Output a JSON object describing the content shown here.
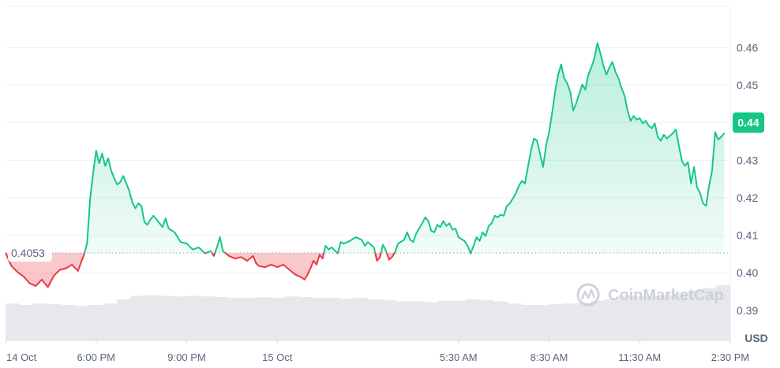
{
  "watermark": {
    "text": "CoinMarketCap"
  },
  "chart_data": {
    "type": "line",
    "unit_label": "USD",
    "reference_value": 0.4053,
    "reference_label": "0.4053",
    "current_value": 0.44,
    "current_label": "0.44",
    "ylim": [
      0.382,
      0.471
    ],
    "y_ticks": [
      "0.46",
      "0.45",
      "0.44",
      "0.43",
      "0.42",
      "0.41",
      "0.40",
      "0.39"
    ],
    "y_tick_values": [
      0.46,
      0.45,
      0.44,
      0.43,
      0.42,
      0.41,
      0.4,
      0.39
    ],
    "x_ticks": [
      "14 Oct",
      "6:00 PM",
      "9:00 PM",
      "15 Oct",
      "5:30 AM",
      "8:30 AM",
      "11:30 AM",
      "2:30 PM"
    ],
    "x_tick_index": [
      0,
      30,
      60,
      90,
      150,
      180,
      210,
      240
    ],
    "x_count": 240,
    "series": [
      {
        "values": [
          [
            0,
            0.4053
          ],
          [
            2,
            0.4018
          ],
          [
            4,
            0.4002
          ],
          [
            6,
            0.399
          ],
          [
            8,
            0.3972
          ],
          [
            10,
            0.3965
          ],
          [
            12,
            0.3982
          ],
          [
            14,
            0.3962
          ],
          [
            16,
            0.3992
          ],
          [
            18,
            0.4008
          ],
          [
            20,
            0.4012
          ],
          [
            22,
            0.4022
          ],
          [
            24,
            0.4005
          ],
          [
            25,
            0.4028
          ],
          [
            26,
            0.4048
          ],
          [
            27,
            0.4078
          ],
          [
            28,
            0.4195
          ],
          [
            29,
            0.4265
          ],
          [
            30,
            0.4325
          ],
          [
            31,
            0.4292
          ],
          [
            32,
            0.4318
          ],
          [
            33,
            0.4285
          ],
          [
            34,
            0.4305
          ],
          [
            35,
            0.4272
          ],
          [
            36,
            0.4252
          ],
          [
            37,
            0.4235
          ],
          [
            38,
            0.4242
          ],
          [
            39,
            0.4258
          ],
          [
            40,
            0.4238
          ],
          [
            41,
            0.4218
          ],
          [
            42,
            0.4188
          ],
          [
            43,
            0.4172
          ],
          [
            44,
            0.4185
          ],
          [
            45,
            0.4178
          ],
          [
            46,
            0.4135
          ],
          [
            47,
            0.4128
          ],
          [
            48,
            0.4142
          ],
          [
            49,
            0.4152
          ],
          [
            50,
            0.4142
          ],
          [
            52,
            0.4122
          ],
          [
            53,
            0.4145
          ],
          [
            54,
            0.4118
          ],
          [
            56,
            0.4108
          ],
          [
            58,
            0.4082
          ],
          [
            60,
            0.4078
          ],
          [
            62,
            0.4062
          ],
          [
            64,
            0.4068
          ],
          [
            66,
            0.4052
          ],
          [
            68,
            0.4058
          ],
          [
            69,
            0.4045
          ],
          [
            70,
            0.4068
          ],
          [
            71,
            0.4095
          ],
          [
            72,
            0.4058
          ],
          [
            74,
            0.4045
          ],
          [
            76,
            0.4038
          ],
          [
            78,
            0.4042
          ],
          [
            80,
            0.4032
          ],
          [
            82,
            0.4045
          ],
          [
            83,
            0.4025
          ],
          [
            84,
            0.4018
          ],
          [
            86,
            0.4015
          ],
          [
            88,
            0.4022
          ],
          [
            90,
            0.4015
          ],
          [
            92,
            0.4022
          ],
          [
            94,
            0.4008
          ],
          [
            96,
            0.3995
          ],
          [
            98,
            0.3988
          ],
          [
            99,
            0.3982
          ],
          [
            100,
            0.3995
          ],
          [
            101,
            0.4012
          ],
          [
            102,
            0.4032
          ],
          [
            103,
            0.4022
          ],
          [
            104,
            0.4048
          ],
          [
            105,
            0.4038
          ],
          [
            106,
            0.4072
          ],
          [
            107,
            0.4062
          ],
          [
            108,
            0.4068
          ],
          [
            110,
            0.4052
          ],
          [
            111,
            0.4082
          ],
          [
            112,
            0.4078
          ],
          [
            114,
            0.4085
          ],
          [
            116,
            0.4095
          ],
          [
            118,
            0.4088
          ],
          [
            119,
            0.4072
          ],
          [
            120,
            0.4082
          ],
          [
            122,
            0.4068
          ],
          [
            123,
            0.4032
          ],
          [
            124,
            0.4042
          ],
          [
            125,
            0.4075
          ],
          [
            126,
            0.4058
          ],
          [
            127,
            0.4035
          ],
          [
            128,
            0.4042
          ],
          [
            129,
            0.4055
          ],
          [
            130,
            0.4078
          ],
          [
            132,
            0.4088
          ],
          [
            133,
            0.4108
          ],
          [
            134,
            0.4088
          ],
          [
            135,
            0.4082
          ],
          [
            136,
            0.4105
          ],
          [
            138,
            0.4132
          ],
          [
            139,
            0.4148
          ],
          [
            140,
            0.4138
          ],
          [
            141,
            0.4112
          ],
          [
            142,
            0.4108
          ],
          [
            143,
            0.4128
          ],
          [
            144,
            0.4122
          ],
          [
            145,
            0.4138
          ],
          [
            146,
            0.4125
          ],
          [
            147,
            0.4132
          ],
          [
            148,
            0.4115
          ],
          [
            149,
            0.4118
          ],
          [
            150,
            0.4095
          ],
          [
            152,
            0.4085
          ],
          [
            153,
            0.4072
          ],
          [
            154,
            0.4052
          ],
          [
            155,
            0.4072
          ],
          [
            156,
            0.4095
          ],
          [
            157,
            0.4085
          ],
          [
            158,
            0.4108
          ],
          [
            159,
            0.4098
          ],
          [
            160,
            0.4125
          ],
          [
            161,
            0.4132
          ],
          [
            162,
            0.4152
          ],
          [
            163,
            0.4148
          ],
          [
            164,
            0.4155
          ],
          [
            165,
            0.4152
          ],
          [
            166,
            0.4178
          ],
          [
            167,
            0.4185
          ],
          [
            168,
            0.4198
          ],
          [
            169,
            0.4212
          ],
          [
            170,
            0.4232
          ],
          [
            171,
            0.4245
          ],
          [
            172,
            0.4238
          ],
          [
            173,
            0.4282
          ],
          [
            174,
            0.4325
          ],
          [
            175,
            0.4358
          ],
          [
            176,
            0.4352
          ],
          [
            177,
            0.4318
          ],
          [
            178,
            0.4282
          ],
          [
            179,
            0.4338
          ],
          [
            180,
            0.4375
          ],
          [
            181,
            0.4425
          ],
          [
            182,
            0.4482
          ],
          [
            183,
            0.4528
          ],
          [
            184,
            0.4555
          ],
          [
            185,
            0.4518
          ],
          [
            186,
            0.4505
          ],
          [
            187,
            0.4482
          ],
          [
            188,
            0.4432
          ],
          [
            189,
            0.4452
          ],
          [
            190,
            0.4478
          ],
          [
            191,
            0.4502
          ],
          [
            192,
            0.4488
          ],
          [
            193,
            0.4528
          ],
          [
            194,
            0.4548
          ],
          [
            195,
            0.4572
          ],
          [
            196,
            0.4612
          ],
          [
            197,
            0.4585
          ],
          [
            198,
            0.4552
          ],
          [
            199,
            0.4528
          ],
          [
            200,
            0.4548
          ],
          [
            201,
            0.4562
          ],
          [
            202,
            0.4535
          ],
          [
            203,
            0.4518
          ],
          [
            204,
            0.4492
          ],
          [
            205,
            0.4472
          ],
          [
            206,
            0.4432
          ],
          [
            207,
            0.4405
          ],
          [
            208,
            0.4418
          ],
          [
            209,
            0.4408
          ],
          [
            210,
            0.4412
          ],
          [
            211,
            0.4398
          ],
          [
            212,
            0.4405
          ],
          [
            213,
            0.4392
          ],
          [
            214,
            0.4385
          ],
          [
            215,
            0.4398
          ],
          [
            216,
            0.4362
          ],
          [
            217,
            0.4352
          ],
          [
            218,
            0.4368
          ],
          [
            219,
            0.4358
          ],
          [
            220,
            0.4365
          ],
          [
            221,
            0.4372
          ],
          [
            222,
            0.4382
          ],
          [
            223,
            0.4338
          ],
          [
            224,
            0.4298
          ],
          [
            225,
            0.4285
          ],
          [
            226,
            0.4295
          ],
          [
            227,
            0.4238
          ],
          [
            228,
            0.4282
          ],
          [
            229,
            0.4228
          ],
          [
            230,
            0.4212
          ],
          [
            231,
            0.4185
          ],
          [
            232,
            0.4178
          ],
          [
            233,
            0.4232
          ],
          [
            234,
            0.4272
          ],
          [
            235,
            0.4375
          ],
          [
            236,
            0.4355
          ],
          [
            237,
            0.4362
          ],
          [
            238,
            0.4372
          ]
        ]
      }
    ],
    "volume_fraction": [
      0.52,
      0.5,
      0.52,
      0.51,
      0.5,
      0.49,
      0.5,
      0.52,
      0.58,
      0.63,
      0.64,
      0.63,
      0.62,
      0.63,
      0.62,
      0.61,
      0.6,
      0.6,
      0.61,
      0.6,
      0.62,
      0.61,
      0.6,
      0.6,
      0.59,
      0.6,
      0.58,
      0.57,
      0.55,
      0.55,
      0.54,
      0.56,
      0.56,
      0.58,
      0.57,
      0.55,
      0.52,
      0.5,
      0.5,
      0.51,
      0.52,
      0.53,
      0.56,
      0.58,
      0.63,
      0.62,
      0.63,
      0.64,
      0.66,
      0.7,
      0.74,
      0.78
    ],
    "colors": {
      "up": "#16c784",
      "down": "#ea3943",
      "reference": "#9aa3b1",
      "grid": "#eff2f5",
      "volume": "#e6e8ec"
    }
  }
}
